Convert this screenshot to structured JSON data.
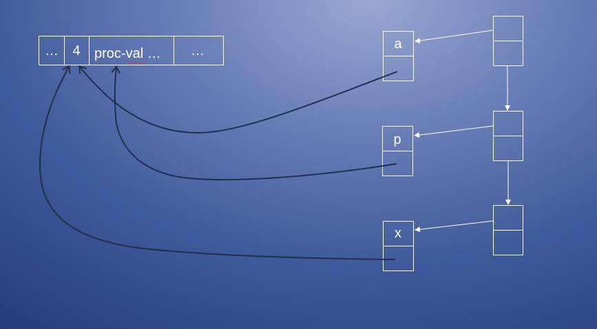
{
  "vector": {
    "cells": [
      "…",
      "4",
      "proc-val …",
      "…"
    ]
  },
  "frames": [
    {
      "name": "a"
    },
    {
      "name": "p"
    },
    {
      "name": "x"
    }
  ]
}
